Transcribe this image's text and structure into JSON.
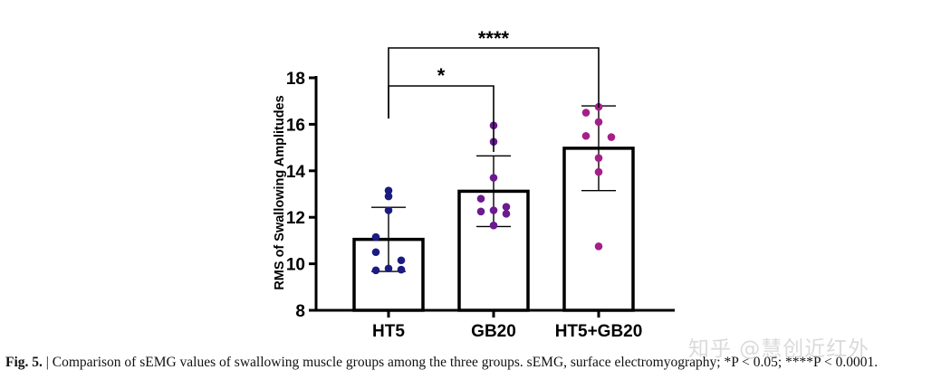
{
  "chart_data": {
    "type": "bar",
    "ylabel": "RMS of Swallowing Amplitudes",
    "xlabel": "",
    "ylim": [
      8,
      18
    ],
    "yticks": [
      8,
      10,
      12,
      14,
      16,
      18
    ],
    "categories": [
      "HT5",
      "GB20",
      "HT5+GB20"
    ],
    "means": [
      11.05,
      13.12,
      14.97
    ],
    "sd": [
      1.38,
      1.52,
      1.82
    ],
    "points": [
      [
        13.15,
        12.9,
        12.3,
        11.15,
        10.5,
        10.15,
        9.8,
        9.75,
        9.72
      ],
      [
        15.95,
        15.25,
        13.7,
        12.8,
        12.45,
        12.3,
        12.25,
        12.15,
        11.65
      ],
      [
        16.75,
        16.5,
        16.1,
        15.5,
        15.45,
        14.55,
        13.95,
        10.75
      ]
    ],
    "point_colors": [
      "#1b1b80",
      "#6a1b8f",
      "#a41f8a"
    ],
    "bar_fill": "#ffffff",
    "bar_edge": "#000000",
    "significance": [
      {
        "from": 0,
        "to": 1,
        "label": "*"
      },
      {
        "from": 0,
        "to": 2,
        "label": "****"
      }
    ],
    "grid": false,
    "legend": "none"
  },
  "caption": {
    "label": "Fig. 5.",
    "text": " | Comparison of sEMG values of swallowing muscle groups among the three groups. sEMG, surface electromyography; *P < 0.05; ****P < 0.0001."
  },
  "watermark": "知乎 @慧创近红外"
}
